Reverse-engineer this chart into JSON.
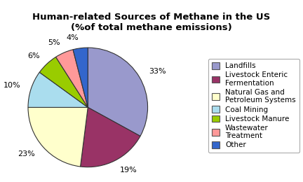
{
  "title": "Human-related Sources of Methane in the US\n(%of total methane emissions)",
  "slices": [
    33,
    19,
    23,
    10,
    6,
    5,
    4
  ],
  "pct_labels": [
    "33%",
    "19%",
    "23%",
    "10%",
    "6%",
    "5%",
    "4%"
  ],
  "colors": [
    "#9999CC",
    "#993366",
    "#FFFFCC",
    "#AADDEE",
    "#99CC00",
    "#FF9999",
    "#3366CC"
  ],
  "legend_labels": [
    "Landfills",
    "Livestock Enteric\nFermentation",
    "Natural Gas and\nPetroleum Systems",
    "Coal Mining",
    "Livestock Manure",
    "Wastewater\nTreatment",
    "Other"
  ],
  "startangle": 90,
  "background_color": "#FFFFFF",
  "title_fontsize": 9.5,
  "label_fontsize": 8,
  "legend_fontsize": 7.5
}
